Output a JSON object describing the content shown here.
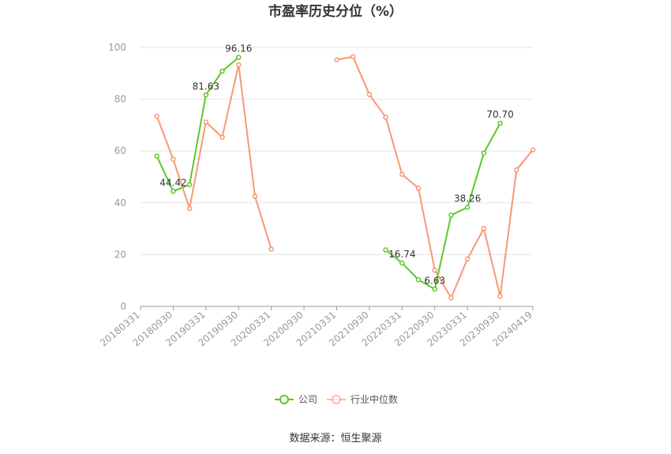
{
  "title": "市盈率历史分位（%）",
  "source": "数据来源：恒生聚源",
  "chart_data": {
    "type": "line",
    "title": "市盈率历史分位（%）",
    "ylim": [
      0,
      100
    ],
    "yticks": [
      0,
      20,
      40,
      60,
      80,
      100
    ],
    "grid": true,
    "legend_position": "bottom-center",
    "x_tick_labels": [
      "20180331",
      "20180930",
      "20190331",
      "20190930",
      "20200331",
      "20200930",
      "20210331",
      "20210930",
      "20220331",
      "20220930",
      "20230331",
      "20230930",
      "20240419"
    ],
    "series": [
      {
        "name": "公司",
        "color": "#5cc82a",
        "points": [
          {
            "t": 0.5,
            "y": 58.0
          },
          {
            "t": 1.0,
            "y": 44.42,
            "label": "44.42"
          },
          {
            "t": 1.5,
            "y": 47.0
          },
          {
            "t": 2.0,
            "y": 81.63,
            "label": "81.63"
          },
          {
            "t": 2.5,
            "y": 90.8
          },
          {
            "t": 3.0,
            "y": 96.16,
            "label": "96.16"
          },
          {
            "t": 6.5,
            "y": null
          },
          {
            "t": 7.5,
            "y": 21.8
          },
          {
            "t": 8.0,
            "y": 16.74,
            "label": "16.74"
          },
          {
            "t": 8.5,
            "y": 10.3
          },
          {
            "t": 9.0,
            "y": 6.63,
            "label": "6.63"
          },
          {
            "t": 9.5,
            "y": 35.2
          },
          {
            "t": 10.0,
            "y": 38.26,
            "label": "38.26"
          },
          {
            "t": 10.5,
            "y": 59.2
          },
          {
            "t": 11.0,
            "y": 70.7,
            "label": "70.70"
          }
        ]
      },
      {
        "name": "行业中位数",
        "color": "#f4946b",
        "points": [
          {
            "t": 0.5,
            "y": 73.4
          },
          {
            "t": 1.0,
            "y": 56.8
          },
          {
            "t": 1.5,
            "y": 37.8
          },
          {
            "t": 2.0,
            "y": 71.2
          },
          {
            "t": 2.5,
            "y": 65.3
          },
          {
            "t": 3.0,
            "y": 93.3
          },
          {
            "t": 3.5,
            "y": 42.5
          },
          {
            "t": 4.0,
            "y": 22.1
          },
          {
            "t": 5.5,
            "y": null
          },
          {
            "t": 6.0,
            "y": 95.2
          },
          {
            "t": 6.5,
            "y": 96.4
          },
          {
            "t": 7.0,
            "y": 81.8
          },
          {
            "t": 7.5,
            "y": 73.0
          },
          {
            "t": 8.0,
            "y": 51.0
          },
          {
            "t": 8.5,
            "y": 45.6
          },
          {
            "t": 9.0,
            "y": 14.0
          },
          {
            "t": 9.5,
            "y": 3.3
          },
          {
            "t": 10.0,
            "y": 18.3
          },
          {
            "t": 10.5,
            "y": 30.1
          },
          {
            "t": 11.0,
            "y": 3.9
          },
          {
            "t": 11.5,
            "y": 52.7
          },
          {
            "t": 12.0,
            "y": 60.4
          }
        ]
      }
    ]
  }
}
